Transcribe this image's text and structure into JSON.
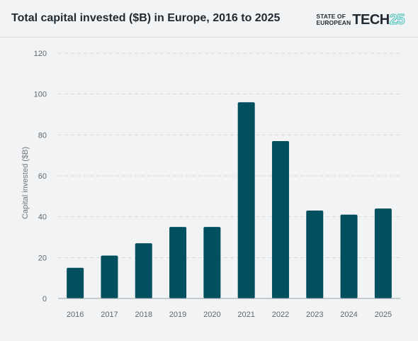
{
  "header": {
    "title": "Total capital invested ($B) in Europe, 2016 to 2025",
    "logo_line1": "STATE OF",
    "logo_line2": "EUROPEAN",
    "logo_word": "TECH",
    "logo_num": "25"
  },
  "colors": {
    "bar": "#024f60",
    "grid": "#d7dadc",
    "accent": "#5cc8c2",
    "background": "#f2f3f4"
  },
  "chart_data": {
    "type": "bar",
    "title": "Total capital invested ($B) in Europe, 2016 to 2025",
    "xlabel": "",
    "ylabel": "Capital invested ($B)",
    "categories": [
      "2016",
      "2017",
      "2018",
      "2019",
      "2020",
      "2021",
      "2022",
      "2023",
      "2024",
      "2025"
    ],
    "values": [
      15,
      21,
      27,
      35,
      35,
      96,
      77,
      43,
      41,
      44
    ],
    "ylim": [
      0,
      120
    ],
    "yticks": [
      "0",
      "20",
      "40",
      "60",
      "80",
      "100",
      "120"
    ],
    "grid": true,
    "legend": "none"
  }
}
